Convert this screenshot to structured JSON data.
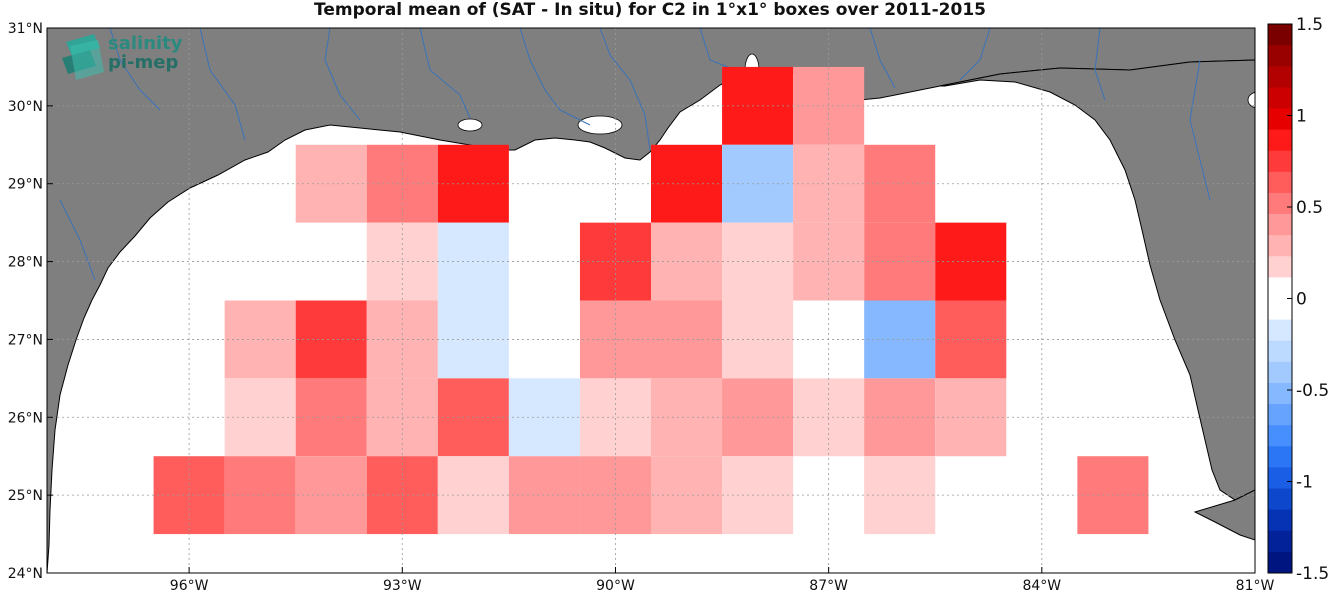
{
  "title": "Temporal mean of (SAT - In situ) for C2 in 1°x1° boxes over 2011-2015",
  "logo": {
    "line1": "salinity",
    "line2": "pi-mep"
  },
  "axes": {
    "lon_range": [
      -98,
      -81
    ],
    "lat_range": [
      24,
      31
    ],
    "x_ticks": [
      {
        "value": -96,
        "label": "96°W"
      },
      {
        "value": -93,
        "label": "93°W"
      },
      {
        "value": -90,
        "label": "90°W"
      },
      {
        "value": -87,
        "label": "87°W"
      },
      {
        "value": -84,
        "label": "84°W"
      },
      {
        "value": -81,
        "label": "81°W"
      }
    ],
    "y_ticks": [
      {
        "value": 24,
        "label": "24°N"
      },
      {
        "value": 25,
        "label": "25°N"
      },
      {
        "value": 26,
        "label": "26°N"
      },
      {
        "value": 27,
        "label": "27°N"
      },
      {
        "value": 28,
        "label": "28°N"
      },
      {
        "value": 29,
        "label": "29°N"
      },
      {
        "value": 30,
        "label": "30°N"
      },
      {
        "value": 31,
        "label": "31°N"
      }
    ],
    "grid": true
  },
  "colors": {
    "land": "#7f7f7f",
    "ocean": "#ffffff",
    "rivers": "#3a73b8",
    "coast": "#000000"
  },
  "colorbar": {
    "range": [
      -1.5,
      1.5
    ],
    "tick_values": [
      1.5,
      1,
      0.5,
      0,
      -0.5,
      -1,
      -1.5
    ],
    "tick_labels": [
      "1.5",
      "1",
      "0.5",
      "0",
      "-0.5",
      "-1",
      "-1.5"
    ],
    "colors_top_to_bottom": [
      "#7a0000",
      "#990000",
      "#b30000",
      "#cc0000",
      "#e60000",
      "#ff1a1a",
      "#ff3a3a",
      "#ff5c5c",
      "#ff7b7b",
      "#ff9999",
      "#ffb3b3",
      "#ffd1d1",
      "#ffffff",
      "#ffffff",
      "#d5e8ff",
      "#bcd9ff",
      "#a3caff",
      "#86b8ff",
      "#66a3ff",
      "#478fff",
      "#2a76f5",
      "#1a5ee6",
      "#0d47cc",
      "#0533b3",
      "#022299",
      "#001580"
    ]
  },
  "chart_data": {
    "type": "heatmap",
    "title": "Temporal mean of (SAT - In situ) for C2 in 1°x1° boxes over 2011-2015",
    "xlabel": "",
    "ylabel": "",
    "value_range": [
      -1.5,
      1.5
    ],
    "cells": [
      {
        "lon0": -88.5,
        "lat0": 29.5,
        "value": 0.9
      },
      {
        "lon0": -87.5,
        "lat0": 29.5,
        "value": 0.45
      },
      {
        "lon0": -94.5,
        "lat0": 28.5,
        "value": 0.3
      },
      {
        "lon0": -93.5,
        "lat0": 28.5,
        "value": 0.5
      },
      {
        "lon0": -92.5,
        "lat0": 28.5,
        "value": 0.9
      },
      {
        "lon0": -89.5,
        "lat0": 28.5,
        "value": 0.9
      },
      {
        "lon0": -88.5,
        "lat0": 28.5,
        "value": -0.35
      },
      {
        "lon0": -87.5,
        "lat0": 28.5,
        "value": 0.25
      },
      {
        "lon0": -86.5,
        "lat0": 28.5,
        "value": 0.5
      },
      {
        "lon0": -93.5,
        "lat0": 27.5,
        "value": 0.15
      },
      {
        "lon0": -92.5,
        "lat0": 27.5,
        "value": -0.15
      },
      {
        "lon0": -90.5,
        "lat0": 27.5,
        "value": 0.7
      },
      {
        "lon0": -89.5,
        "lat0": 27.5,
        "value": 0.3
      },
      {
        "lon0": -88.5,
        "lat0": 27.5,
        "value": 0.15
      },
      {
        "lon0": -87.5,
        "lat0": 27.5,
        "value": 0.25
      },
      {
        "lon0": -86.5,
        "lat0": 27.5,
        "value": 0.5
      },
      {
        "lon0": -85.5,
        "lat0": 27.5,
        "value": 0.9
      },
      {
        "lon0": -95.5,
        "lat0": 26.5,
        "value": 0.25
      },
      {
        "lon0": -94.5,
        "lat0": 26.5,
        "value": 0.8
      },
      {
        "lon0": -93.5,
        "lat0": 26.5,
        "value": 0.25
      },
      {
        "lon0": -92.5,
        "lat0": 26.5,
        "value": -0.15
      },
      {
        "lon0": -90.5,
        "lat0": 26.5,
        "value": 0.4
      },
      {
        "lon0": -89.5,
        "lat0": 26.5,
        "value": 0.4
      },
      {
        "lon0": -88.5,
        "lat0": 26.5,
        "value": 0.15
      },
      {
        "lon0": -86.5,
        "lat0": 26.5,
        "value": -0.55
      },
      {
        "lon0": -85.5,
        "lat0": 26.5,
        "value": 0.65
      },
      {
        "lon0": -95.5,
        "lat0": 25.5,
        "value": 0.15
      },
      {
        "lon0": -94.5,
        "lat0": 25.5,
        "value": 0.5
      },
      {
        "lon0": -93.5,
        "lat0": 25.5,
        "value": 0.25
      },
      {
        "lon0": -92.5,
        "lat0": 25.5,
        "value": 0.65
      },
      {
        "lon0": -91.5,
        "lat0": 25.5,
        "value": -0.15
      },
      {
        "lon0": -90.5,
        "lat0": 25.5,
        "value": 0.15
      },
      {
        "lon0": -89.5,
        "lat0": 25.5,
        "value": 0.25
      },
      {
        "lon0": -88.5,
        "lat0": 25.5,
        "value": 0.4
      },
      {
        "lon0": -87.5,
        "lat0": 25.5,
        "value": 0.15
      },
      {
        "lon0": -86.5,
        "lat0": 25.5,
        "value": 0.4
      },
      {
        "lon0": -85.5,
        "lat0": 25.5,
        "value": 0.25
      },
      {
        "lon0": -96.5,
        "lat0": 24.5,
        "value": 0.6
      },
      {
        "lon0": -95.5,
        "lat0": 24.5,
        "value": 0.5
      },
      {
        "lon0": -94.5,
        "lat0": 24.5,
        "value": 0.4
      },
      {
        "lon0": -93.5,
        "lat0": 24.5,
        "value": 0.65
      },
      {
        "lon0": -92.5,
        "lat0": 24.5,
        "value": 0.15
      },
      {
        "lon0": -91.5,
        "lat0": 24.5,
        "value": 0.35
      },
      {
        "lon0": -90.5,
        "lat0": 24.5,
        "value": 0.35
      },
      {
        "lon0": -89.5,
        "lat0": 24.5,
        "value": 0.25
      },
      {
        "lon0": -88.5,
        "lat0": 24.5,
        "value": 0.15
      },
      {
        "lon0": -86.5,
        "lat0": 24.5,
        "value": 0.15
      },
      {
        "lon0": -83.5,
        "lat0": 24.5,
        "value": 0.5
      }
    ]
  }
}
